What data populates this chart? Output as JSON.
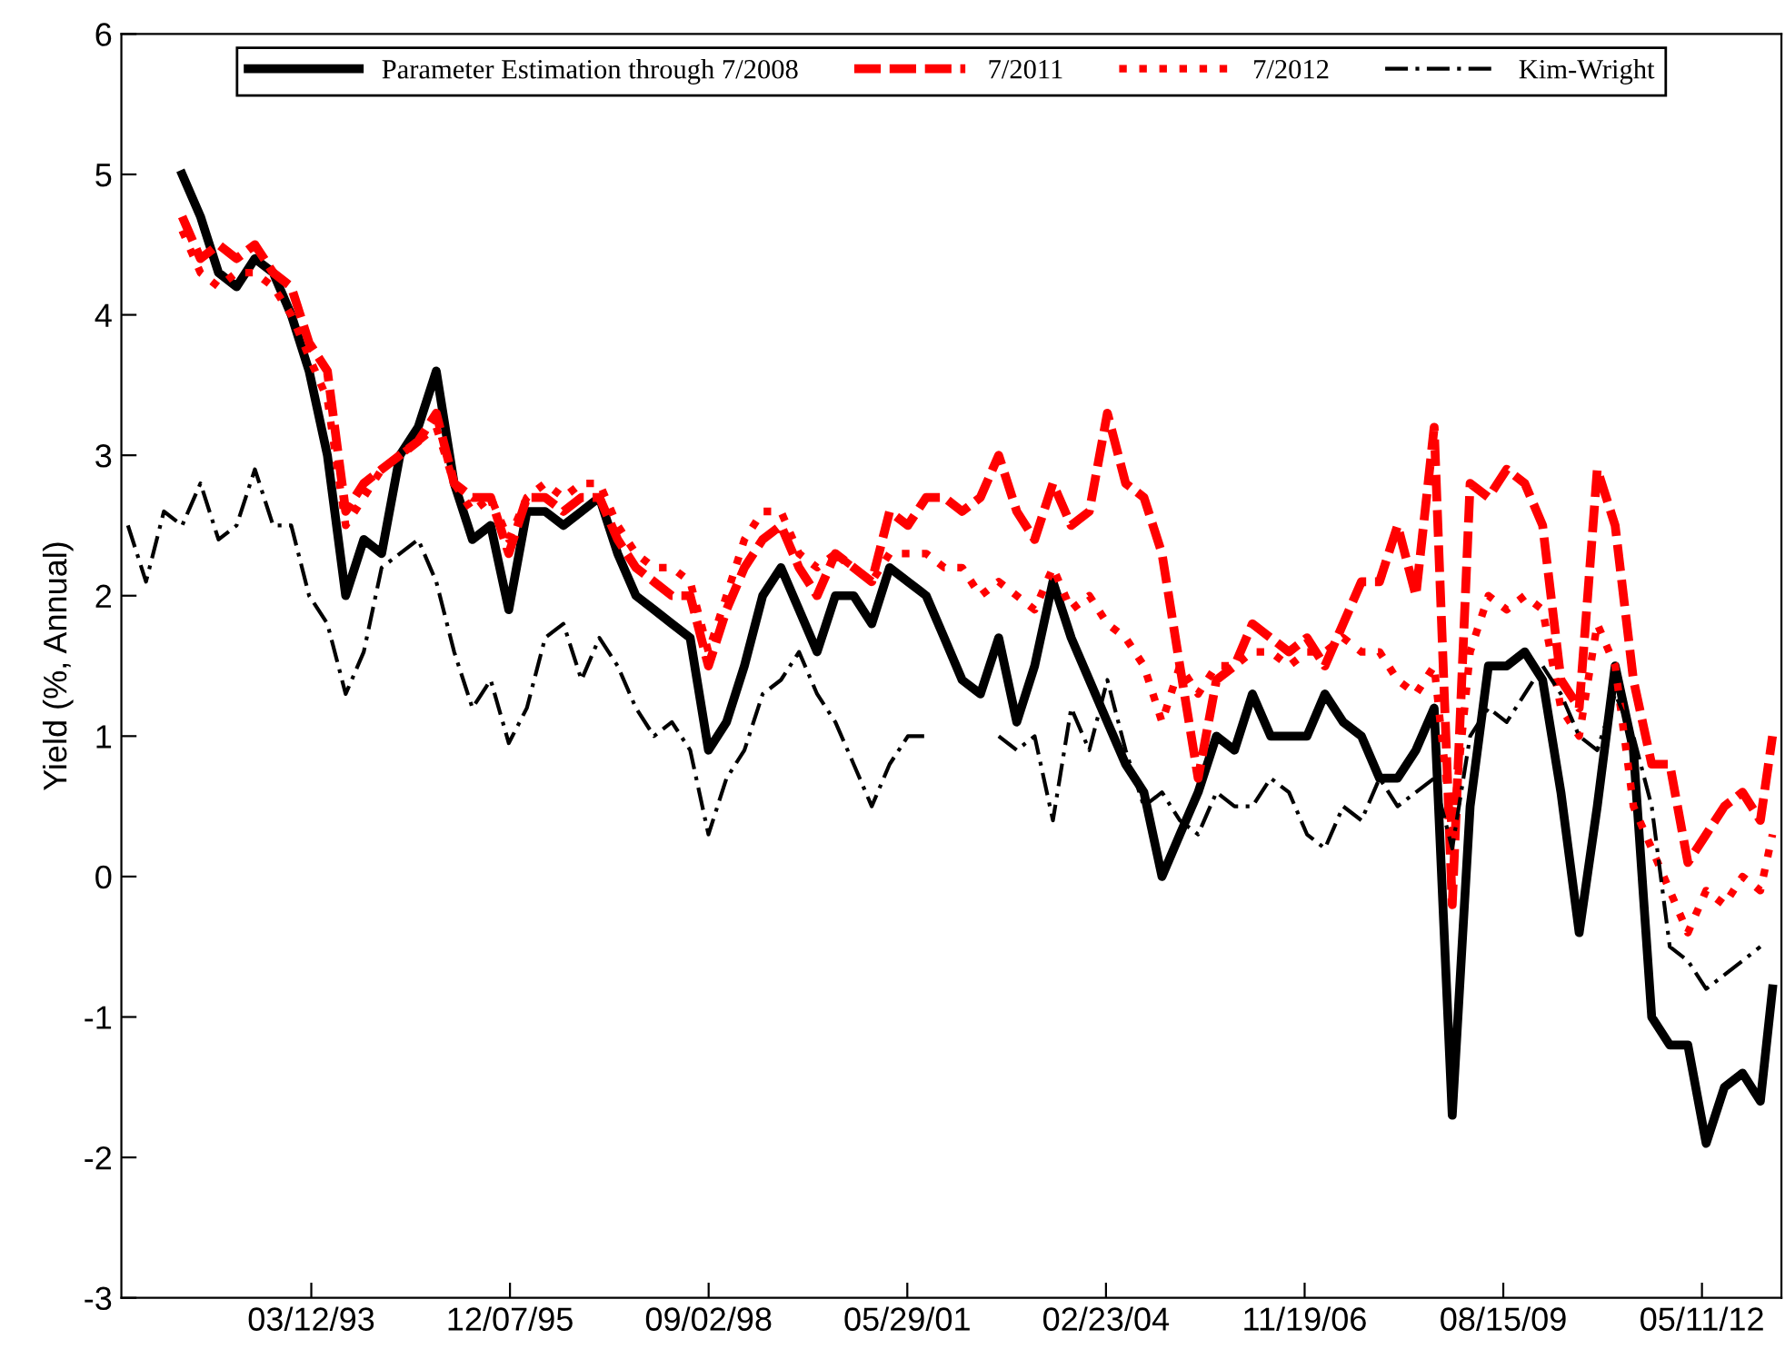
{
  "chart_data": {
    "type": "line",
    "ylabel": "Yield (%, Annual)",
    "x": [
      "1990-09",
      "1990-12",
      "1991-03",
      "1991-06",
      "1991-09",
      "1991-12",
      "1992-03",
      "1992-06",
      "1992-09",
      "1992-12",
      "1993-03",
      "1993-06",
      "1993-09",
      "1993-12",
      "1994-03",
      "1994-06",
      "1994-09",
      "1994-12",
      "1995-03",
      "1995-06",
      "1995-09",
      "1995-12",
      "1996-03",
      "1996-06",
      "1996-09",
      "1996-12",
      "1997-03",
      "1997-06",
      "1997-09",
      "1997-12",
      "1998-03",
      "1998-06",
      "1998-09",
      "1998-12",
      "1999-03",
      "1999-06",
      "1999-09",
      "1999-12",
      "2000-03",
      "2000-06",
      "2000-09",
      "2000-12",
      "2001-03",
      "2001-06",
      "2001-09",
      "2001-12",
      "2002-03",
      "2002-06",
      "2002-09",
      "2002-12",
      "2003-03",
      "2003-06",
      "2003-09",
      "2003-12",
      "2004-03",
      "2004-06",
      "2004-09",
      "2004-12",
      "2005-03",
      "2005-06",
      "2005-09",
      "2005-12",
      "2006-03",
      "2006-06",
      "2006-09",
      "2006-12",
      "2007-03",
      "2007-06",
      "2007-09",
      "2007-12",
      "2008-03",
      "2008-06",
      "2008-09",
      "2008-12",
      "2009-03",
      "2009-06",
      "2009-09",
      "2009-12",
      "2010-03",
      "2010-06",
      "2010-09",
      "2010-12",
      "2011-03",
      "2011-06",
      "2011-09",
      "2011-12",
      "2012-03",
      "2012-06",
      "2012-09",
      "2012-12",
      "2013-03",
      "2013-05"
    ],
    "series": [
      {
        "name": "Parameter Estimation through 7/2008",
        "color": "#000000",
        "line_style": "solid",
        "values": [
          null,
          null,
          null,
          5.0,
          4.7,
          4.3,
          4.2,
          4.4,
          4.3,
          4.0,
          3.6,
          3.0,
          2.0,
          2.4,
          2.3,
          3.0,
          3.2,
          3.6,
          2.8,
          2.4,
          2.5,
          1.9,
          2.6,
          2.6,
          2.5,
          2.6,
          2.7,
          2.3,
          2.0,
          1.9,
          1.8,
          1.7,
          0.9,
          1.1,
          1.5,
          2.0,
          2.2,
          1.9,
          1.6,
          2.0,
          2.0,
          1.8,
          2.2,
          2.1,
          2.0,
          1.7,
          1.4,
          1.3,
          1.7,
          1.1,
          1.5,
          2.1,
          1.7,
          1.4,
          1.1,
          0.8,
          0.6,
          0.0,
          0.3,
          0.6,
          1.0,
          0.9,
          1.3,
          1.0,
          1.0,
          1.0,
          1.3,
          1.1,
          1.0,
          0.7,
          0.7,
          0.9,
          1.2,
          -1.7,
          0.5,
          1.5,
          1.5,
          1.6,
          1.4,
          0.6,
          -0.4,
          0.5,
          1.5,
          0.9,
          -1.0,
          -1.2,
          -1.2,
          -1.9,
          -1.5,
          -1.4,
          -1.6,
          -0.8
        ]
      },
      {
        "name": "7/2011",
        "color": "#ff0000",
        "line_style": "dashed",
        "values": [
          null,
          null,
          null,
          4.7,
          4.4,
          4.5,
          4.4,
          4.5,
          4.3,
          4.2,
          3.8,
          3.6,
          2.6,
          2.8,
          2.9,
          3.0,
          3.1,
          3.3,
          2.8,
          2.7,
          2.7,
          2.3,
          2.7,
          2.7,
          2.6,
          2.7,
          2.7,
          2.4,
          2.2,
          2.1,
          2.0,
          2.0,
          1.5,
          1.9,
          2.2,
          2.4,
          2.5,
          2.2,
          2.0,
          2.3,
          2.2,
          2.1,
          2.6,
          2.5,
          2.7,
          2.7,
          2.6,
          2.7,
          3.0,
          2.6,
          2.4,
          2.8,
          2.5,
          2.6,
          3.3,
          2.8,
          2.7,
          2.3,
          1.5,
          0.7,
          1.4,
          1.5,
          1.8,
          1.7,
          1.6,
          1.7,
          1.5,
          1.8,
          2.1,
          2.1,
          2.5,
          2.0,
          3.2,
          -0.2,
          2.8,
          2.7,
          2.9,
          2.8,
          2.5,
          1.4,
          1.2,
          2.9,
          2.5,
          1.4,
          0.8,
          0.8,
          0.1,
          0.3,
          0.5,
          0.6,
          0.4,
          1.0
        ]
      },
      {
        "name": "7/2012",
        "color": "#ff0000",
        "line_style": "dotted",
        "values": [
          null,
          null,
          null,
          4.6,
          4.3,
          4.2,
          4.3,
          4.3,
          4.2,
          4.0,
          3.7,
          3.4,
          2.5,
          2.7,
          2.9,
          3.0,
          3.1,
          3.2,
          2.8,
          2.6,
          2.7,
          2.4,
          2.7,
          2.8,
          2.7,
          2.8,
          2.8,
          2.5,
          2.3,
          2.2,
          2.2,
          2.1,
          1.6,
          2.0,
          2.4,
          2.6,
          2.6,
          2.3,
          2.2,
          2.3,
          2.2,
          2.1,
          2.3,
          2.3,
          2.3,
          2.2,
          2.2,
          2.0,
          2.1,
          2.0,
          1.9,
          2.2,
          1.9,
          2.0,
          1.8,
          1.7,
          1.5,
          1.1,
          1.5,
          1.3,
          1.5,
          1.5,
          1.6,
          1.6,
          1.5,
          1.6,
          1.6,
          1.7,
          1.6,
          1.6,
          1.4,
          1.3,
          1.5,
          0.3,
          1.6,
          2.0,
          1.9,
          2.0,
          1.9,
          1.2,
          1.0,
          1.8,
          1.5,
          0.5,
          0.2,
          -0.1,
          -0.4,
          -0.1,
          -0.2,
          0.0,
          -0.1,
          0.3
        ]
      },
      {
        "name": "Kim-Wright",
        "color": "#000000",
        "line_style": "dashed",
        "values": [
          2.5,
          2.1,
          2.6,
          2.5,
          2.8,
          2.4,
          2.5,
          2.9,
          2.5,
          2.5,
          2.0,
          1.8,
          1.3,
          1.6,
          2.2,
          2.3,
          2.4,
          2.1,
          1.6,
          1.2,
          1.4,
          0.95,
          1.2,
          1.7,
          1.8,
          1.4,
          1.7,
          1.5,
          1.2,
          1.0,
          1.1,
          0.9,
          0.3,
          0.7,
          0.9,
          1.3,
          1.4,
          1.6,
          1.3,
          1.1,
          0.8,
          0.5,
          0.8,
          1.0,
          1.0,
          null,
          null,
          null,
          1.0,
          0.9,
          1.0,
          0.4,
          1.2,
          0.9,
          1.4,
          0.9,
          0.5,
          0.6,
          0.4,
          0.3,
          0.6,
          0.5,
          0.5,
          0.7,
          0.6,
          0.3,
          0.2,
          0.5,
          0.4,
          0.7,
          0.5,
          0.6,
          0.7,
          0.2,
          1.0,
          1.2,
          1.1,
          1.3,
          1.5,
          1.3,
          1.0,
          0.9,
          1.3,
          1.0,
          0.5,
          -0.5,
          -0.6,
          -0.8,
          -0.7,
          -0.6,
          -0.5,
          null
        ]
      }
    ],
    "xlim": [
      "1990-07-30",
      "2013-06-15"
    ],
    "xticks": [
      {
        "value": "1993-03-12",
        "label": "03/12/93"
      },
      {
        "value": "1995-12-07",
        "label": "12/07/95"
      },
      {
        "value": "1998-09-02",
        "label": "09/02/98"
      },
      {
        "value": "2001-05-29",
        "label": "05/29/01"
      },
      {
        "value": "2004-02-23",
        "label": "02/23/04"
      },
      {
        "value": "2006-11-19",
        "label": "11/19/06"
      },
      {
        "value": "2009-08-15",
        "label": "08/15/09"
      },
      {
        "value": "2012-05-11",
        "label": "05/11/12"
      }
    ],
    "ylim": [
      -3,
      6
    ],
    "yticks": [
      -3,
      -2,
      -1,
      0,
      1,
      2,
      3,
      4,
      5,
      6
    ],
    "grid": false,
    "legend": "top"
  }
}
